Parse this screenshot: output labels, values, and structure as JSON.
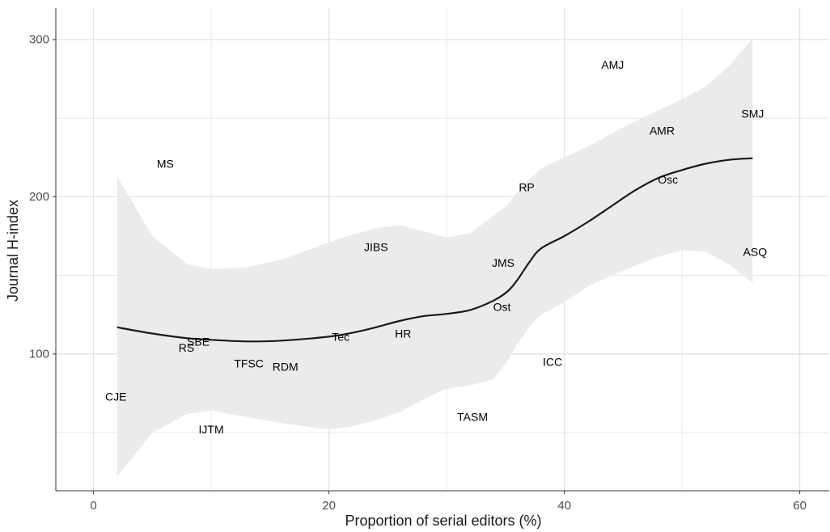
{
  "chart_data": {
    "type": "scatter",
    "title": "",
    "xlabel": "Proportion of serial editors (%)",
    "ylabel": "Journal H-index",
    "xlim": [
      -3.2,
      62.5
    ],
    "ylim": [
      13,
      320
    ],
    "x_ticks": [
      0,
      20,
      40,
      60
    ],
    "y_ticks": [
      100,
      200,
      300
    ],
    "x_minor": [
      10,
      30,
      50
    ],
    "y_minor": [
      50,
      150,
      250
    ],
    "grid": true,
    "colors": {
      "grid": "#e3e3e3",
      "band": "#ebebeb",
      "line": "#1a1a1a",
      "axis": "#333333"
    },
    "points": [
      {
        "label": "AMJ",
        "x": 44.1,
        "y": 284
      },
      {
        "label": "SMJ",
        "x": 56.0,
        "y": 253
      },
      {
        "label": "AMR",
        "x": 48.3,
        "y": 242
      },
      {
        "label": "MS",
        "x": 6.1,
        "y": 221
      },
      {
        "label": "Osc",
        "x": 48.8,
        "y": 211
      },
      {
        "label": "RP",
        "x": 36.8,
        "y": 206
      },
      {
        "label": "JIBS",
        "x": 24.0,
        "y": 168
      },
      {
        "label": "ASQ",
        "x": 56.2,
        "y": 165
      },
      {
        "label": "JMS",
        "x": 34.8,
        "y": 158
      },
      {
        "label": "Ost",
        "x": 34.7,
        "y": 130
      },
      {
        "label": "HR",
        "x": 26.3,
        "y": 113
      },
      {
        "label": "Tec",
        "x": 21.0,
        "y": 111
      },
      {
        "label": "SBE",
        "x": 8.9,
        "y": 108
      },
      {
        "label": "RS",
        "x": 7.9,
        "y": 104
      },
      {
        "label": "ICC",
        "x": 39.0,
        "y": 95
      },
      {
        "label": "TFSC",
        "x": 13.2,
        "y": 94
      },
      {
        "label": "RDM",
        "x": 16.3,
        "y": 92
      },
      {
        "label": "CJE",
        "x": 1.9,
        "y": 73
      },
      {
        "label": "TASM",
        "x": 32.2,
        "y": 60
      },
      {
        "label": "IJTM",
        "x": 10.0,
        "y": 52
      }
    ],
    "smooth_fit": {
      "x": [
        2,
        5,
        8,
        10,
        13,
        16,
        20,
        22,
        24,
        26,
        28,
        30,
        32,
        34,
        35.2,
        36,
        37,
        38,
        40,
        42,
        44,
        46,
        48,
        50,
        52,
        54,
        56
      ],
      "y": [
        117,
        113,
        110,
        109,
        108,
        108.5,
        111,
        113.5,
        117,
        121,
        124,
        125.5,
        128,
        134,
        140,
        147,
        158,
        167,
        175,
        184,
        194,
        204,
        212,
        217,
        221,
        223.5,
        224.5
      ],
      "lower": [
        22,
        50,
        62,
        64,
        60,
        56,
        52,
        54,
        58,
        63,
        71,
        78,
        80,
        84,
        96,
        106,
        117,
        125,
        133,
        143,
        150,
        156,
        162,
        166,
        165,
        157,
        145
      ],
      "upper": [
        213,
        175,
        157,
        154,
        155,
        160,
        171,
        176,
        180,
        182,
        178,
        174,
        177,
        188,
        195,
        203,
        211,
        218,
        225,
        232,
        240,
        248,
        255,
        262,
        270,
        283,
        301
      ]
    }
  }
}
